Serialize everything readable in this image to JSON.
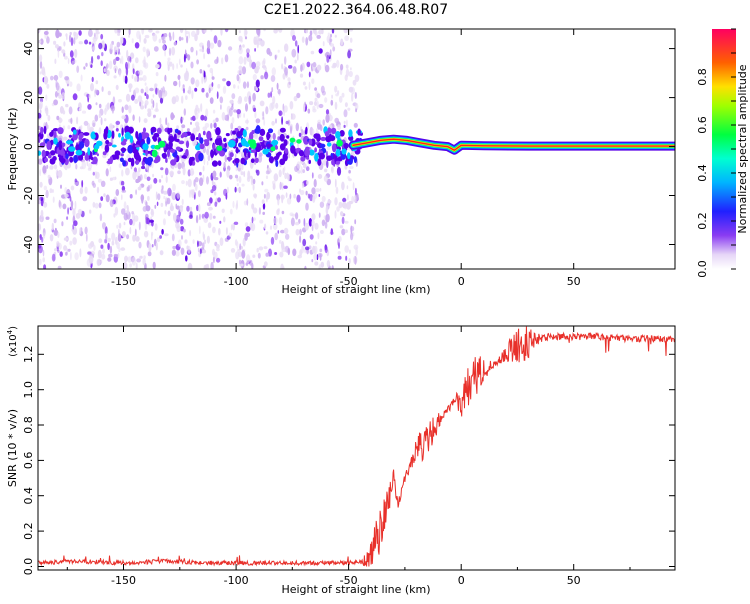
{
  "title": "C2E1.2022.364.06.48.R07",
  "chart_data": [
    {
      "type": "heatmap",
      "name": "spectrogram",
      "xlabel": "Height of straight line (km)",
      "ylabel": "Frequency (Hz)",
      "xlim": [
        -188,
        95
      ],
      "ylim": [
        -50,
        48
      ],
      "xticks": [
        -150,
        -100,
        -50,
        0,
        50
      ],
      "yticks": [
        -40,
        -20,
        0,
        20,
        40
      ],
      "colormap": [
        "#e8dcf5",
        "#c9a8f0",
        "#8a3cf2",
        "#5a00e8",
        "#2a20ff",
        "#00c8ff",
        "#00ff60",
        "#ffe000",
        "#ff2020"
      ],
      "colorbar": {
        "label": "Normalized spectral amplitude",
        "range": [
          0,
          1
        ],
        "ticks": [
          0.0,
          0.2,
          0.4,
          0.6,
          0.8
        ]
      },
      "noise_region_x": [
        -188,
        -46
      ],
      "signal_line": {
        "x": [
          -48,
          -42,
          -36,
          -30,
          -24,
          -18,
          -12,
          -6,
          -3,
          0,
          10,
          30,
          60,
          95
        ],
        "y": [
          0.5,
          1.5,
          2.5,
          3.0,
          2.5,
          1.5,
          0.5,
          0.0,
          -1.5,
          0.5,
          0.3,
          0.2,
          0.2,
          0.2
        ]
      }
    },
    {
      "type": "line",
      "name": "snr",
      "xlabel": "Height of straight line (km)",
      "ylabel": "SNR (10 * v/v)",
      "yscale_label": "(x10",
      "yscale_exp": "4",
      "xlim": [
        -188,
        95
      ],
      "ylim": [
        -0.02,
        1.36
      ],
      "xticks": [
        -150,
        -100,
        -50,
        0,
        50
      ],
      "yticks": [
        0.0,
        0.2,
        0.4,
        0.6,
        0.8,
        1.0,
        1.2
      ],
      "color": "#e8302a",
      "x": [
        -188,
        -170,
        -150,
        -130,
        -110,
        -90,
        -70,
        -50,
        -44,
        -40,
        -36,
        -32,
        -30,
        -28,
        -25,
        -22,
        -18,
        -15,
        -12,
        -8,
        -5,
        -2,
        0,
        2,
        5,
        8,
        12,
        18,
        25,
        32,
        40,
        50,
        60,
        70,
        80,
        95
      ],
      "y": [
        0.02,
        0.03,
        0.02,
        0.03,
        0.02,
        0.02,
        0.02,
        0.02,
        0.03,
        0.08,
        0.2,
        0.38,
        0.5,
        0.35,
        0.5,
        0.6,
        0.7,
        0.75,
        0.78,
        0.85,
        0.9,
        0.95,
        0.9,
        1.0,
        1.05,
        1.1,
        1.12,
        1.18,
        1.24,
        1.28,
        1.3,
        1.3,
        1.3,
        1.29,
        1.29,
        1.28
      ]
    }
  ]
}
